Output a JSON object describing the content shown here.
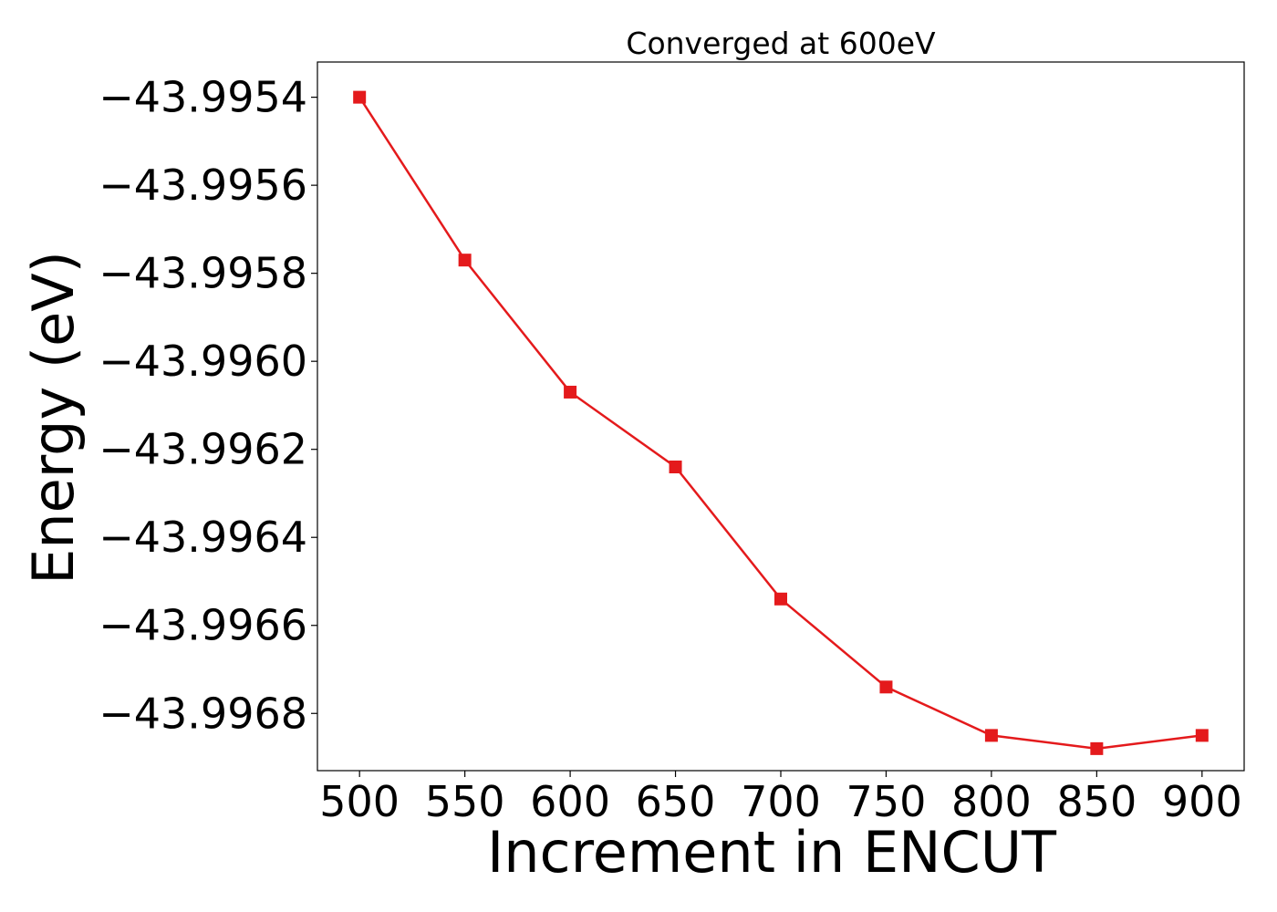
{
  "chart_data": {
    "type": "line",
    "title": "Converged at 600eV",
    "xlabel": "Increment in ENCUT",
    "ylabel": "Energy (eV)",
    "x": [
      500,
      550,
      600,
      650,
      700,
      750,
      800,
      850,
      900
    ],
    "series": [
      {
        "values": [
          -43.9954,
          -43.99577,
          -43.99607,
          -43.99624,
          -43.99654,
          -43.99674,
          -43.99685,
          -43.99688,
          -43.99685
        ],
        "color": "#e41a1c",
        "marker": "square"
      }
    ],
    "xticks": [
      500,
      550,
      600,
      650,
      700,
      750,
      800,
      850,
      900
    ],
    "xtick_labels": [
      "500",
      "550",
      "600",
      "650",
      "700",
      "750",
      "800",
      "850",
      "900"
    ],
    "yticks": [
      -43.9954,
      -43.9956,
      -43.9958,
      -43.996,
      -43.9962,
      -43.9964,
      -43.9966,
      -43.9968
    ],
    "ytick_labels": [
      "−43.9954",
      "−43.9956",
      "−43.9958",
      "−43.9960",
      "−43.9962",
      "−43.9964",
      "−43.9966",
      "−43.9968"
    ],
    "xlim": [
      480,
      920
    ],
    "ylim": [
      -43.99693,
      -43.99532
    ],
    "grid": false,
    "legend": "none"
  }
}
